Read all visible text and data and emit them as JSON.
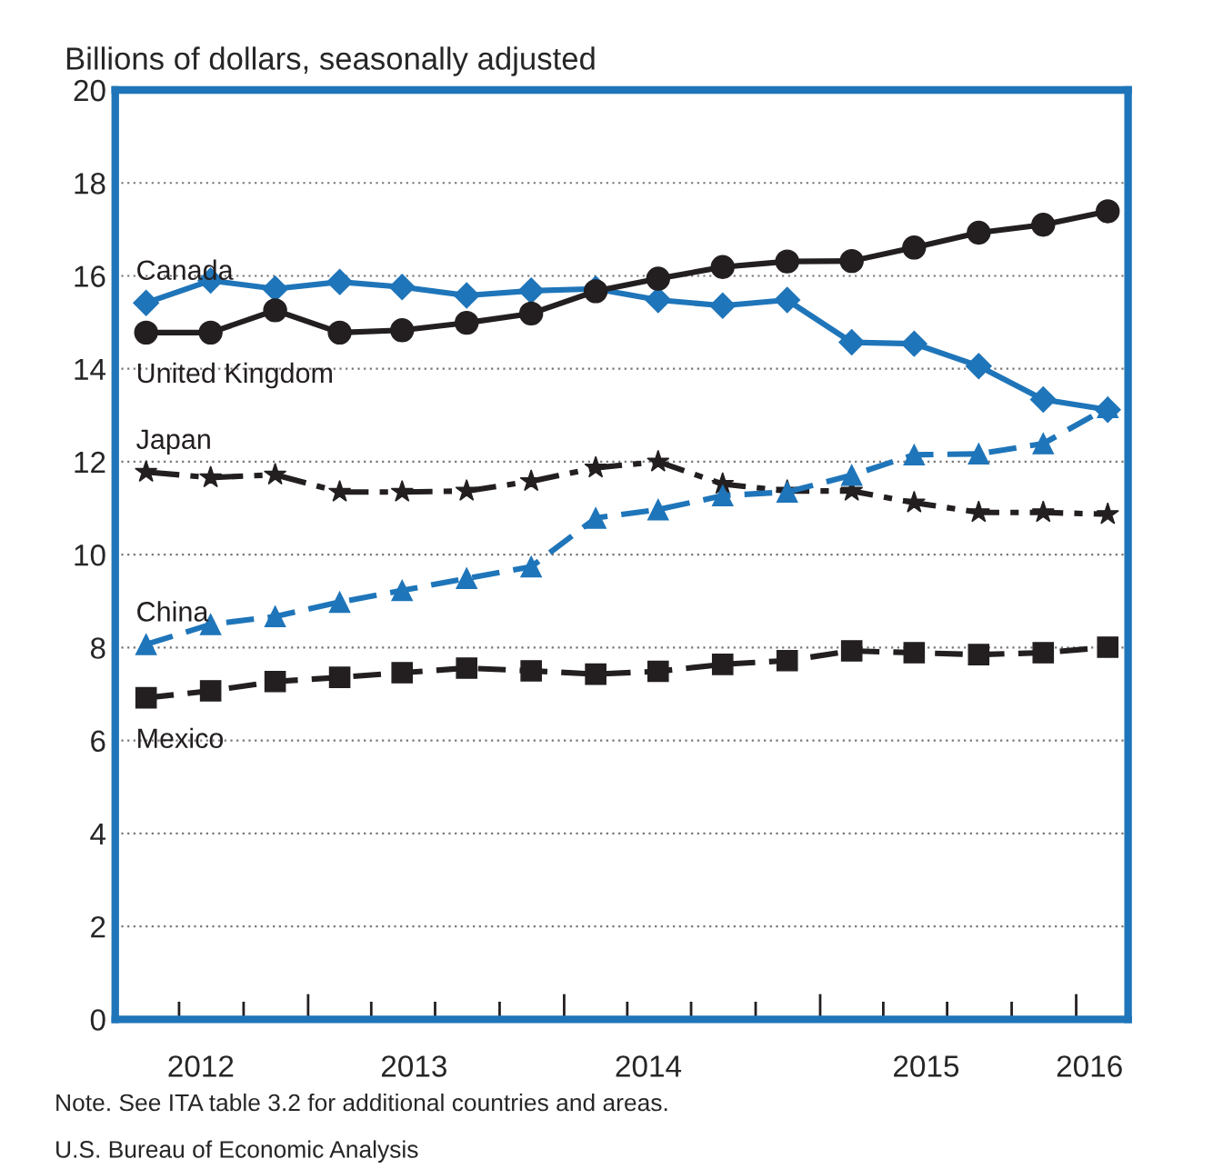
{
  "chart_data": {
    "type": "line",
    "ylabel": "Billions of dollars, seasonally adjusted",
    "x": [
      "2012-05-15",
      "2012-08-15",
      "2012-11-15",
      "2013-02-15",
      "2013-05-15",
      "2013-08-15",
      "2013-11-15",
      "2014-02-15",
      "2014-05-15",
      "2014-08-15",
      "2014-11-15",
      "2015-02-15",
      "2015-05-15",
      "2015-08-15",
      "2015-11-15",
      "2016-02-15"
    ],
    "xlim": [
      "2012-04-01",
      "2016-03-15"
    ],
    "xticks": [
      {
        "value": "2012-07-01",
        "label": null
      },
      {
        "value": "2012-08",
        "label": "2012"
      },
      {
        "value": "2012-10-01",
        "label": null
      },
      {
        "value": "2013-01-01",
        "label": null
      },
      {
        "value": "2013-04-01",
        "label": null
      },
      {
        "value": "2013-06",
        "label": "2013"
      },
      {
        "value": "2013-07-01",
        "label": null
      },
      {
        "value": "2013-10-01",
        "label": null
      },
      {
        "value": "2014-01-01",
        "label": null
      },
      {
        "value": "2014-04-01",
        "label": null
      },
      {
        "value": "2014-05",
        "label": "2014"
      },
      {
        "value": "2014-07-01",
        "label": null
      },
      {
        "value": "2014-10-01",
        "label": null
      },
      {
        "value": "2015-01-01",
        "label": null
      },
      {
        "value": "2015-04-01",
        "label": null
      },
      {
        "value": "2015-06",
        "label": "2015"
      },
      {
        "value": "2015-07-01",
        "label": null
      },
      {
        "value": "2015-10-01",
        "label": null
      },
      {
        "value": "2016-01-01",
        "label": null
      },
      {
        "value": "2016-01-20",
        "label": "2016"
      }
    ],
    "ylim": [
      0,
      20
    ],
    "yticks": [
      0,
      2,
      4,
      6,
      8,
      10,
      12,
      14,
      16,
      18,
      20
    ],
    "grid": "y",
    "legend": false,
    "series": [
      {
        "name": "Canada",
        "color": "#1f75b9",
        "marker": "diamond",
        "line_style": "solid",
        "values": [
          15.42,
          15.9,
          15.72,
          15.87,
          15.76,
          15.58,
          15.68,
          15.72,
          15.48,
          15.36,
          15.48,
          14.57,
          14.54,
          14.06,
          13.34,
          13.12
        ]
      },
      {
        "name": "United Kingdom",
        "color": "#231f20",
        "marker": "circle",
        "line_style": "solid",
        "values": [
          14.78,
          14.78,
          15.26,
          14.78,
          14.83,
          14.99,
          15.19,
          15.67,
          15.94,
          16.19,
          16.31,
          16.32,
          16.61,
          16.93,
          17.1,
          17.39
        ]
      },
      {
        "name": "Japan",
        "color": "#231f20",
        "marker": "star",
        "line_style": "dashdot",
        "values": [
          11.78,
          11.66,
          11.72,
          11.35,
          11.35,
          11.37,
          11.58,
          11.87,
          12.0,
          11.52,
          11.37,
          11.37,
          11.12,
          10.91,
          10.91,
          10.87
        ]
      },
      {
        "name": "China",
        "color": "#1f75b9",
        "marker": "triangle",
        "line_style": "dashed",
        "values": [
          8.07,
          8.5,
          8.67,
          8.98,
          9.23,
          9.49,
          9.74,
          10.79,
          10.97,
          11.27,
          11.35,
          11.71,
          12.15,
          12.17,
          12.39,
          13.17
        ]
      },
      {
        "name": "Mexico",
        "color": "#231f20",
        "marker": "square",
        "line_style": "dashed",
        "values": [
          6.92,
          7.07,
          7.27,
          7.36,
          7.46,
          7.56,
          7.5,
          7.43,
          7.49,
          7.64,
          7.72,
          7.93,
          7.89,
          7.85,
          7.89,
          8.01
        ]
      }
    ],
    "annotations": [
      "Note. See ITA table 3.2 for additional countries and areas.",
      "U.S. Bureau of Economic Analysis"
    ]
  }
}
